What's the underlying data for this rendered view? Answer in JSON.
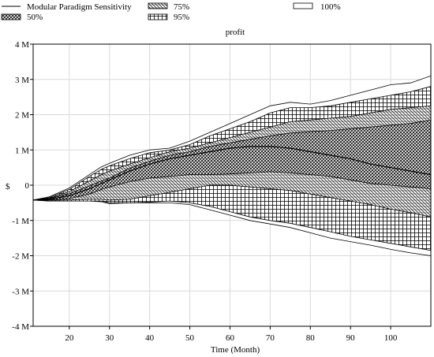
{
  "chart_data": {
    "type": "area",
    "title": "profit",
    "xlabel": "Time (Month)",
    "ylabel": "$",
    "xlim": [
      11,
      110
    ],
    "ylim": [
      -4,
      4
    ],
    "x_ticks": [
      20,
      30,
      40,
      50,
      60,
      70,
      80,
      90,
      100
    ],
    "y_ticks": [
      {
        "value": 4,
        "label": "4 M"
      },
      {
        "value": 3,
        "label": "3 M"
      },
      {
        "value": 2,
        "label": "2 M"
      },
      {
        "value": 1,
        "label": "1 M"
      },
      {
        "value": 0,
        "label": "0"
      },
      {
        "value": -1,
        "label": "-1 M"
      },
      {
        "value": -2,
        "label": "-2 M"
      },
      {
        "value": -3,
        "label": "-3 M"
      },
      {
        "value": -4,
        "label": "-4 M"
      }
    ],
    "grid": true,
    "legend_position": "top",
    "legend": [
      {
        "label": "Modular Paradigm Sensitivity",
        "kind": "line"
      },
      {
        "label": "50%",
        "kind": "pattern-50"
      },
      {
        "label": "75%",
        "kind": "pattern-75"
      },
      {
        "label": "95%",
        "kind": "pattern-95"
      },
      {
        "label": "100%",
        "kind": "pattern-100"
      }
    ],
    "x": [
      11,
      15,
      20,
      25,
      28,
      30,
      35,
      40,
      45,
      50,
      55,
      60,
      65,
      70,
      75,
      80,
      85,
      90,
      95,
      100,
      105,
      110
    ],
    "mean": [
      -0.42,
      -0.4,
      -0.3,
      -0.1,
      0.05,
      0.15,
      0.4,
      0.6,
      0.75,
      0.85,
      0.95,
      1.05,
      1.1,
      1.1,
      1.05,
      0.95,
      0.85,
      0.75,
      0.6,
      0.5,
      0.4,
      0.3
    ],
    "bands": [
      {
        "name": "100%",
        "upper": [
          -0.42,
          -0.33,
          -0.08,
          0.3,
          0.52,
          0.62,
          0.85,
          1.0,
          1.05,
          1.25,
          1.5,
          1.75,
          2.0,
          2.25,
          2.35,
          2.3,
          2.4,
          2.55,
          2.7,
          2.85,
          2.9,
          3.1
        ],
        "lower": [
          -0.42,
          -0.45,
          -0.45,
          -0.45,
          -0.47,
          -0.52,
          -0.5,
          -0.5,
          -0.5,
          -0.55,
          -0.7,
          -0.85,
          -1.0,
          -1.1,
          -1.2,
          -1.35,
          -1.5,
          -1.6,
          -1.7,
          -1.82,
          -1.92,
          -2.0
        ]
      },
      {
        "name": "95%",
        "upper": [
          -0.42,
          -0.35,
          -0.12,
          0.25,
          0.45,
          0.55,
          0.75,
          0.92,
          1.0,
          1.15,
          1.4,
          1.6,
          1.8,
          2.05,
          2.2,
          2.2,
          2.25,
          2.35,
          2.45,
          2.55,
          2.65,
          2.8
        ],
        "lower": [
          -0.42,
          -0.45,
          -0.45,
          -0.45,
          -0.45,
          -0.5,
          -0.5,
          -0.48,
          -0.45,
          -0.5,
          -0.6,
          -0.75,
          -0.9,
          -1.0,
          -1.08,
          -1.2,
          -1.32,
          -1.45,
          -1.55,
          -1.65,
          -1.75,
          -1.85
        ]
      },
      {
        "name": "75%",
        "upper": [
          -0.42,
          -0.37,
          -0.18,
          0.12,
          0.3,
          0.4,
          0.6,
          0.78,
          0.95,
          1.05,
          1.2,
          1.35,
          1.5,
          1.65,
          1.8,
          1.85,
          1.9,
          1.95,
          2.05,
          2.15,
          2.2,
          2.25
        ],
        "lower": [
          -0.42,
          -0.43,
          -0.42,
          -0.4,
          -0.4,
          -0.42,
          -0.4,
          -0.3,
          -0.2,
          -0.1,
          0.0,
          0.0,
          -0.05,
          -0.1,
          -0.15,
          -0.25,
          -0.35,
          -0.45,
          -0.55,
          -0.68,
          -0.78,
          -0.9
        ]
      },
      {
        "name": "50%",
        "upper": [
          -0.42,
          -0.38,
          -0.24,
          -0.02,
          0.12,
          0.2,
          0.48,
          0.68,
          0.85,
          0.95,
          1.1,
          1.2,
          1.3,
          1.4,
          1.48,
          1.52,
          1.55,
          1.6,
          1.65,
          1.7,
          1.75,
          1.85
        ],
        "lower": [
          -0.42,
          -0.42,
          -0.38,
          -0.25,
          -0.12,
          -0.05,
          0.1,
          0.2,
          0.25,
          0.3,
          0.3,
          0.32,
          0.35,
          0.38,
          0.35,
          0.3,
          0.25,
          0.15,
          0.05,
          0.0,
          -0.05,
          -0.1
        ]
      }
    ]
  }
}
